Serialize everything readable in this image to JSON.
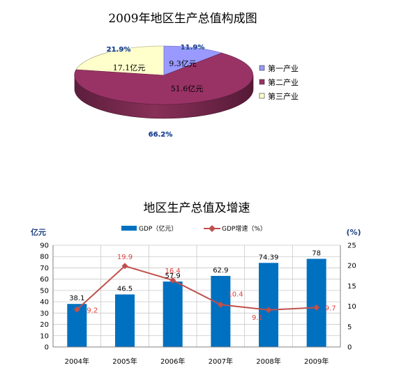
{
  "chart_data": [
    {
      "type": "pie",
      "title": "2009年地区生产总值构成图",
      "slices": [
        {
          "label": "第一产业",
          "value": 9.3,
          "value_label": "9.3亿元",
          "percent_label": "11.9%",
          "color": "#9999ff"
        },
        {
          "label": "第二产业",
          "value": 51.6,
          "value_label": "51.6亿元",
          "percent_label": "66.2%",
          "color": "#993366"
        },
        {
          "label": "第三产业",
          "value": 17.1,
          "value_label": "17.1亿元",
          "percent_label": "21.9%",
          "color": "#ffffcc"
        }
      ],
      "legend_position": "right"
    },
    {
      "type": "bar",
      "title": "地区生产总值及增速",
      "categories": [
        "2004年",
        "2005年",
        "2006年",
        "2007年",
        "2008年",
        "2009年"
      ],
      "series": [
        {
          "name": "GDP（亿元）",
          "kind": "bar",
          "axis": "left",
          "color": "#0070c0",
          "values": [
            38.1,
            46.5,
            57.9,
            62.9,
            74.39,
            78
          ],
          "labels": [
            "38.1",
            "46.5",
            "57.9",
            "62.9",
            "74.39",
            "78"
          ]
        },
        {
          "name": "GDP增速（%）",
          "kind": "line",
          "axis": "right",
          "color": "#c0504d",
          "values": [
            9.2,
            19.9,
            16.4,
            10.4,
            9.1,
            9.7
          ],
          "labels": [
            "9.2",
            "19.9",
            "16.4",
            "10.4",
            "9.1",
            "9.7"
          ]
        }
      ],
      "ylabel_left": "亿元",
      "ylabel_right": "(%)",
      "ylim_left": [
        0,
        90
      ],
      "ylim_right": [
        0,
        25
      ],
      "yticks_left": [
        "0",
        "10",
        "20",
        "30",
        "40",
        "50",
        "60",
        "70",
        "80",
        "90"
      ],
      "yticks_right": [
        "0",
        "5",
        "10",
        "15",
        "20",
        "25"
      ],
      "grid": true,
      "legend_position": "top"
    }
  ]
}
